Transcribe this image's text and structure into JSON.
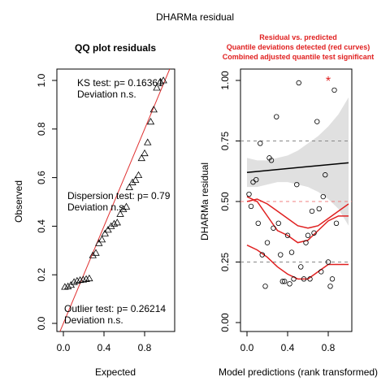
{
  "suptitle": "DHARMa residual",
  "chart_data": [
    {
      "type": "scatter",
      "title": "QQ plot residuals",
      "xlabel": "Expected",
      "ylabel": "Observed",
      "xlim": [
        0,
        1
      ],
      "ylim": [
        0,
        1
      ],
      "xticks": [
        "0.0",
        "0.4",
        "0.8"
      ],
      "yticks": [
        "0.0",
        "0.2",
        "0.4",
        "0.6",
        "0.8",
        "1.0"
      ],
      "marker": "triangle",
      "reference_line": "y = x",
      "reference_color": "#e03030",
      "points": [
        [
          0.015,
          0.15
        ],
        [
          0.045,
          0.152
        ],
        [
          0.075,
          0.158
        ],
        [
          0.105,
          0.17
        ],
        [
          0.135,
          0.175
        ],
        [
          0.165,
          0.178
        ],
        [
          0.195,
          0.18
        ],
        [
          0.225,
          0.182
        ],
        [
          0.255,
          0.185
        ],
        [
          0.29,
          0.28
        ],
        [
          0.32,
          0.29
        ],
        [
          0.35,
          0.33
        ],
        [
          0.38,
          0.345
        ],
        [
          0.41,
          0.37
        ],
        [
          0.44,
          0.385
        ],
        [
          0.47,
          0.4
        ],
        [
          0.5,
          0.41
        ],
        [
          0.53,
          0.415
        ],
        [
          0.56,
          0.45
        ],
        [
          0.59,
          0.47
        ],
        [
          0.62,
          0.48
        ],
        [
          0.65,
          0.56
        ],
        [
          0.68,
          0.58
        ],
        [
          0.71,
          0.59
        ],
        [
          0.74,
          0.61
        ],
        [
          0.77,
          0.68
        ],
        [
          0.8,
          0.7
        ],
        [
          0.83,
          0.745
        ],
        [
          0.86,
          0.83
        ],
        [
          0.89,
          0.88
        ],
        [
          0.92,
          0.97
        ],
        [
          0.955,
          0.995
        ],
        [
          0.985,
          1.0
        ]
      ],
      "annotations": [
        {
          "line1": "KS test: p= 0.16361",
          "line2": "Deviation  n.s."
        },
        {
          "line1": "Dispersion test: p= 0.79",
          "line2": "Deviation  n.s."
        },
        {
          "line1": "Outlier test: p= 0.26214",
          "line2": "Deviation  n.s."
        }
      ]
    },
    {
      "type": "scatter",
      "title_lines": [
        "Residual vs. predicted",
        "Quantile deviations detected (red curves)",
        "Combined adjusted quantile test significant"
      ],
      "title_color": "#e02020",
      "xlabel": "Model predictions (rank transformed)",
      "ylabel": "DHARMa residual",
      "xlim": [
        0,
        1
      ],
      "ylim": [
        0,
        1
      ],
      "xticks": [
        "0.0",
        "0.4",
        "0.8"
      ],
      "yticks": [
        "0.00",
        "0.25",
        "0.50",
        "0.75",
        "1.00"
      ],
      "reference_lines": [
        0.25,
        0.5,
        0.75
      ],
      "marker": "open-circle",
      "outlier_marker": "*",
      "outlier_color": "#e02020",
      "points": [
        [
          0.02,
          0.53
        ],
        [
          0.04,
          0.48
        ],
        [
          0.06,
          0.58
        ],
        [
          0.09,
          0.59
        ],
        [
          0.11,
          0.41
        ],
        [
          0.13,
          0.74
        ],
        [
          0.15,
          0.28
        ],
        [
          0.18,
          0.15
        ],
        [
          0.2,
          0.33
        ],
        [
          0.22,
          0.68
        ],
        [
          0.24,
          0.67
        ],
        [
          0.26,
          0.39
        ],
        [
          0.29,
          0.85
        ],
        [
          0.31,
          0.41
        ],
        [
          0.33,
          0.28
        ],
        [
          0.35,
          0.17
        ],
        [
          0.37,
          0.17
        ],
        [
          0.4,
          0.36
        ],
        [
          0.42,
          0.16
        ],
        [
          0.44,
          0.29
        ],
        [
          0.46,
          0.18
        ],
        [
          0.49,
          0.57
        ],
        [
          0.51,
          0.99
        ],
        [
          0.53,
          0.23
        ],
        [
          0.56,
          0.18
        ],
        [
          0.58,
          0.33
        ],
        [
          0.6,
          0.36
        ],
        [
          0.62,
          0.18
        ],
        [
          0.64,
          0.46
        ],
        [
          0.66,
          0.37
        ],
        [
          0.69,
          0.83
        ],
        [
          0.71,
          0.47
        ],
        [
          0.73,
          0.21
        ],
        [
          0.75,
          0.52
        ],
        [
          0.77,
          0.61
        ],
        [
          0.8,
          0.25
        ],
        [
          0.82,
          0.15
        ],
        [
          0.84,
          0.18
        ],
        [
          0.86,
          0.96
        ],
        [
          0.88,
          0.41
        ]
      ],
      "outliers": [
        [
          0.8,
          1.0
        ]
      ],
      "fit_line": {
        "color": "#000000",
        "start": 0.62,
        "end": 0.66
      },
      "fit_band": {
        "color": "#e0e0e0",
        "x": [
          0.0,
          0.1,
          0.2,
          0.3,
          0.4,
          0.5,
          0.6,
          0.7,
          0.8,
          0.9,
          1.0
        ],
        "upper": [
          0.68,
          0.67,
          0.67,
          0.68,
          0.69,
          0.71,
          0.74,
          0.77,
          0.81,
          0.86,
          0.93
        ],
        "lower": [
          0.56,
          0.56,
          0.57,
          0.58,
          0.58,
          0.57,
          0.56,
          0.54,
          0.51,
          0.47,
          0.4
        ]
      },
      "quantile_curves": [
        {
          "name": "0.25",
          "color": "#e02020",
          "x": [
            0.0,
            0.1,
            0.2,
            0.3,
            0.4,
            0.5,
            0.6,
            0.7,
            0.8,
            0.9,
            1.0
          ],
          "y": [
            0.32,
            0.3,
            0.27,
            0.23,
            0.2,
            0.18,
            0.18,
            0.21,
            0.24,
            0.24,
            0.24
          ]
        },
        {
          "name": "0.5",
          "color": "#e02020",
          "x": [
            0.0,
            0.1,
            0.2,
            0.3,
            0.4,
            0.5,
            0.6,
            0.7,
            0.8,
            0.9,
            1.0
          ],
          "y": [
            0.52,
            0.5,
            0.44,
            0.38,
            0.36,
            0.33,
            0.34,
            0.38,
            0.42,
            0.44,
            0.44
          ]
        },
        {
          "name": "0.75",
          "color": "#e02020",
          "x": [
            0.0,
            0.1,
            0.2,
            0.3,
            0.4,
            0.5,
            0.6,
            0.7,
            0.8,
            0.9,
            1.0
          ],
          "y": [
            0.5,
            0.51,
            0.49,
            0.46,
            0.43,
            0.4,
            0.39,
            0.4,
            0.43,
            0.46,
            0.49
          ]
        }
      ]
    }
  ]
}
